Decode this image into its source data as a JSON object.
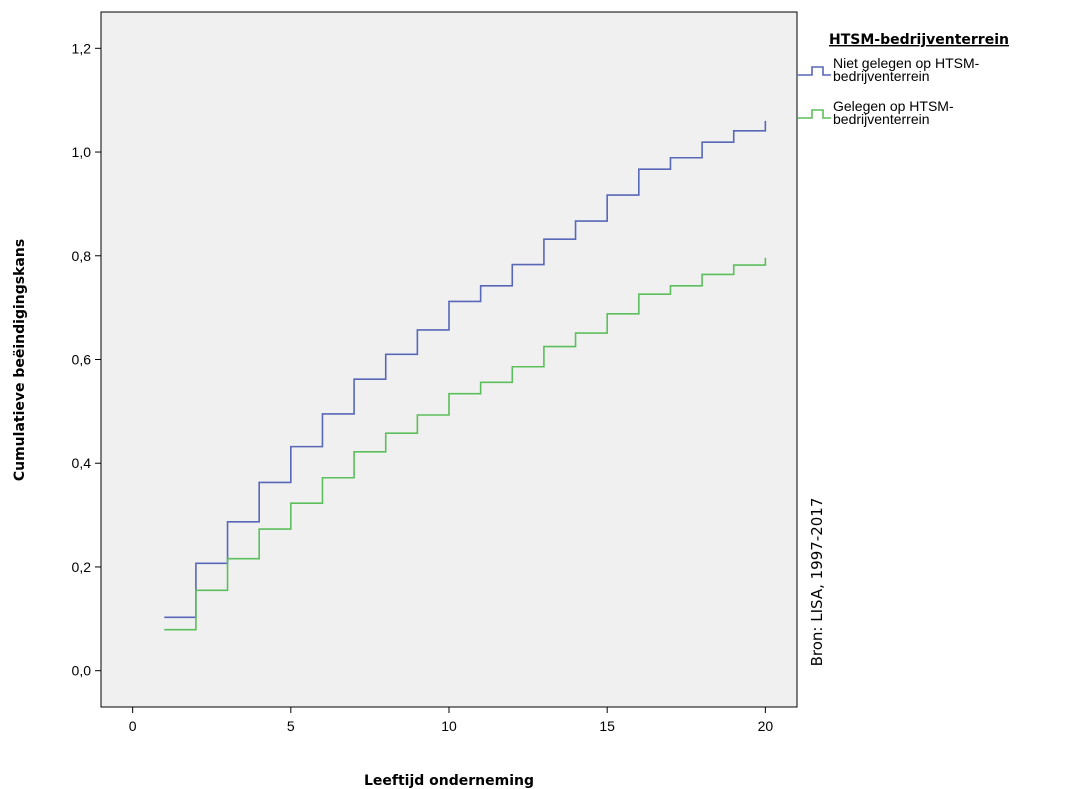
{
  "chart_data": {
    "type": "line",
    "step": true,
    "xlabel": "Leeftijd onderneming",
    "ylabel": "Cumulatieve beëindigingskans",
    "xlim": [
      -1,
      21
    ],
    "ylim": [
      -0.07,
      1.27
    ],
    "x_ticks": [
      0,
      5,
      10,
      15,
      20
    ],
    "x_tick_labels": [
      "0",
      "5",
      "10",
      "15",
      "20"
    ],
    "y_ticks": [
      0.0,
      0.2,
      0.4,
      0.6,
      0.8,
      1.0,
      1.2
    ],
    "y_tick_labels": [
      "0,0",
      "0,2",
      "0,4",
      "0,6",
      "0,8",
      "1,0",
      "1,2"
    ],
    "grid": false,
    "background": "#f0f0f0",
    "legend": {
      "title": "HTSM-bedrijventerrein",
      "placement": "right"
    },
    "source_note": "Bron: LISA, 1997-2017",
    "series": [
      {
        "name_lines": [
          "Niet gelegen op HTSM-",
          "bedrijventerrein"
        ],
        "color": "#5867b8",
        "x": [
          1,
          2,
          3,
          4,
          5,
          6,
          7,
          8,
          9,
          10,
          11,
          12,
          13,
          14,
          15,
          16,
          17,
          18,
          19,
          20
        ],
        "y": [
          0.103,
          0.207,
          0.287,
          0.363,
          0.432,
          0.495,
          0.562,
          0.61,
          0.657,
          0.712,
          0.742,
          0.783,
          0.832,
          0.867,
          0.917,
          0.967,
          0.989,
          1.019,
          1.041,
          1.06
        ]
      },
      {
        "name_lines": [
          "Gelegen op HTSM-",
          "bedrijventerrein"
        ],
        "color": "#5bbf5b",
        "x": [
          1,
          2,
          3,
          4,
          5,
          6,
          7,
          8,
          9,
          10,
          11,
          12,
          13,
          14,
          15,
          16,
          17,
          18,
          19,
          20
        ],
        "y": [
          0.079,
          0.155,
          0.216,
          0.273,
          0.323,
          0.372,
          0.422,
          0.458,
          0.493,
          0.534,
          0.556,
          0.586,
          0.625,
          0.651,
          0.688,
          0.726,
          0.742,
          0.764,
          0.782,
          0.796
        ]
      }
    ]
  }
}
